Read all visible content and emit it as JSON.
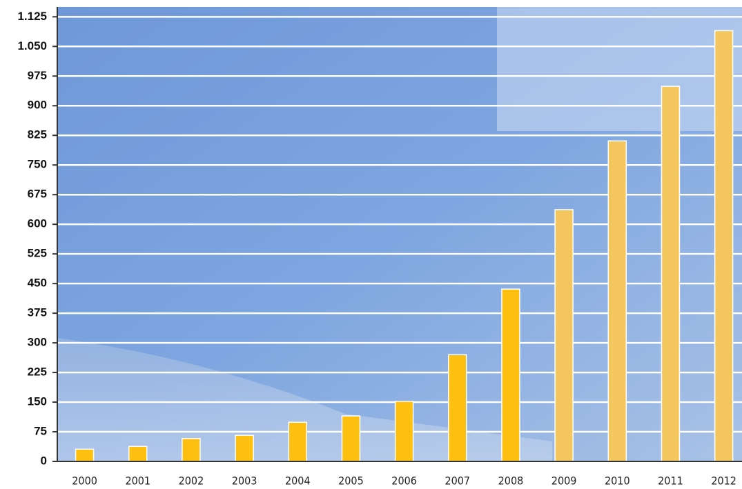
{
  "chart_data": {
    "type": "bar",
    "categories": [
      "2000",
      "2001",
      "2002",
      "2003",
      "2004",
      "2005",
      "2006",
      "2007",
      "2008",
      "2009",
      "2010",
      "2011",
      "2012"
    ],
    "values": [
      31,
      38,
      58,
      66,
      99,
      115,
      152,
      270,
      436,
      637,
      811,
      949,
      1090
    ],
    "colors": [
      "#fdc010",
      "#fdc010",
      "#fdc010",
      "#fdc010",
      "#fdc010",
      "#fdc010",
      "#fdc010",
      "#fdc010",
      "#fdc010",
      "#f4c65e",
      "#f4c65e",
      "#f4c65e",
      "#f4c65e"
    ],
    "ylim": [
      0,
      1150
    ],
    "yticks": [
      0,
      75,
      150,
      225,
      300,
      375,
      450,
      525,
      600,
      675,
      750,
      825,
      900,
      975,
      {
        "value": 1050,
        "label": "1.050"
      },
      {
        "value": 1125,
        "label": "1.125"
      }
    ],
    "grid": true
  }
}
